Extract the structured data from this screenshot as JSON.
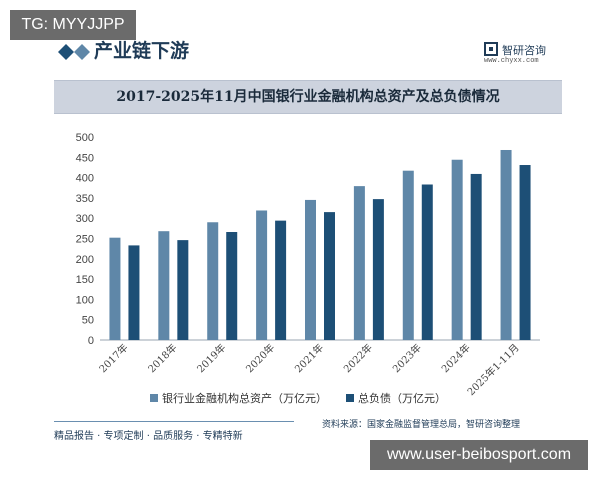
{
  "watermark_top": "TG: MYYJJPP",
  "watermark_bottom": "www.user-beibosport.com",
  "section": {
    "title": "产业链下游"
  },
  "brand": {
    "name": "智研咨询",
    "url": "www.chyxx.com"
  },
  "footer": {
    "source": "资料来源：国家金融监督管理总局，智研咨询整理",
    "tagline": "精品报告 · 专项定制 · 品质服务 · 专精特新"
  },
  "colors": {
    "total_assets": "#5f87a8",
    "total_liabilities": "#1d4f76",
    "title_bar": "#cdd3de",
    "axis_text": "#444444"
  },
  "chart_data": {
    "type": "bar",
    "title": "2017-2025年11月中国银行业金融机构总资产及总负债情况",
    "xlabel": "",
    "ylabel": "",
    "ylim": [
      0,
      500
    ],
    "yticks": [
      0,
      50,
      100,
      150,
      200,
      250,
      300,
      350,
      400,
      450,
      500
    ],
    "categories": [
      "2017年",
      "2018年",
      "2019年",
      "2020年",
      "2021年",
      "2022年",
      "2023年",
      "2024年",
      "2025年1-11月"
    ],
    "series": [
      {
        "name": "银行业金融机构总资产（万亿元）",
        "values": [
          252,
          268,
          290,
          319,
          345,
          379,
          417,
          444,
          468
        ]
      },
      {
        "name": "总负债（万亿元）",
        "values": [
          233,
          246,
          266,
          294,
          315,
          347,
          383,
          409,
          431
        ]
      }
    ],
    "grid": false,
    "legend": "bottom-center"
  }
}
